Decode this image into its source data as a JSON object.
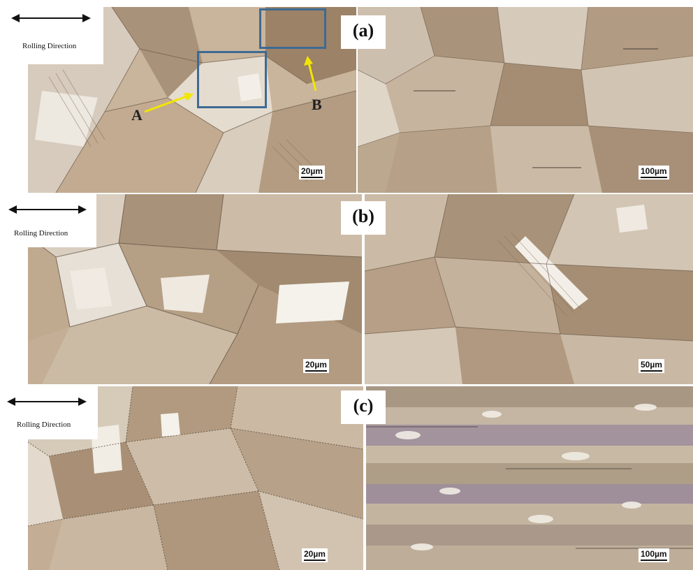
{
  "figure": {
    "rows": [
      {
        "id": "a",
        "panel_label": "(a)",
        "direction_label": "Rolling Direction",
        "left_scale": "20µm",
        "right_scale": "100µm",
        "markers": [
          {
            "label": "A",
            "color": "#f2e600"
          },
          {
            "label": "B",
            "color": "#f2e600"
          }
        ],
        "roi_color": "#3d6a94"
      },
      {
        "id": "b",
        "panel_label": "(b)",
        "direction_label": "Rolling Direction",
        "left_scale": "20µm",
        "right_scale": "50µm"
      },
      {
        "id": "c",
        "panel_label": "(c)",
        "direction_label": "Rolling Direction",
        "left_scale": "20µm",
        "right_scale": "100µm"
      }
    ]
  }
}
